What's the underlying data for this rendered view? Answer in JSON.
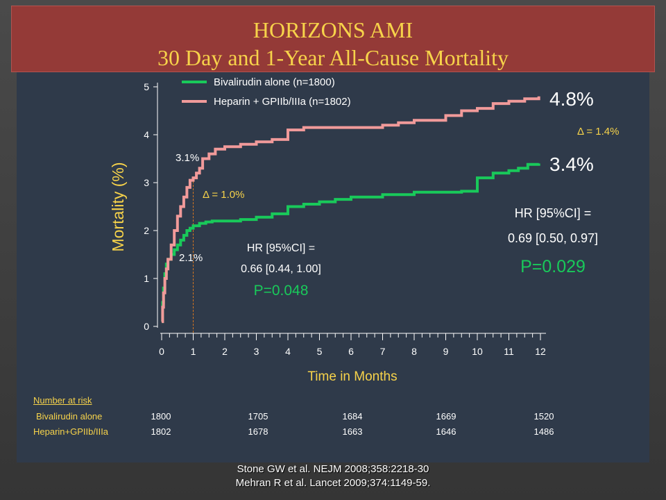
{
  "title": {
    "line1": "HORIZONS AMI",
    "line2": "30 Day and 1-Year All-Cause Mortality"
  },
  "colors": {
    "banner": "#943a37",
    "title_text": "#f7d34a",
    "bivalirudin": "#19c95a",
    "heparin": "#f19a9a",
    "panel": "#2f3a4a"
  },
  "chart_data": {
    "type": "line",
    "xlabel": "Time in Months",
    "ylabel": "Mortality (%)",
    "xlim": [
      0,
      12
    ],
    "ylim": [
      0,
      5
    ],
    "x_ticks": [
      "0",
      "1",
      "2",
      "3",
      "4",
      "5",
      "6",
      "7",
      "8",
      "9",
      "10",
      "11",
      "12"
    ],
    "y_ticks": [
      "0",
      "1",
      "2",
      "3",
      "4",
      "5"
    ],
    "grid": false,
    "legend_position": "top-left",
    "series": [
      {
        "name": "Bivalirudin alone (n=1800)",
        "x": [
          0,
          0.03,
          0.06,
          0.1,
          0.15,
          0.2,
          0.3,
          0.4,
          0.5,
          0.6,
          0.7,
          0.8,
          0.9,
          1.0,
          1.2,
          1.4,
          1.6,
          1.8,
          2.0,
          2.5,
          3.0,
          3.5,
          4.0,
          4.5,
          5.0,
          5.5,
          6.0,
          7.0,
          8.0,
          9.0,
          9.5,
          10.0,
          10.5,
          11.0,
          11.3,
          11.6,
          11.95
        ],
        "y": [
          0.1,
          0.5,
          0.8,
          1.1,
          1.3,
          1.4,
          1.5,
          1.6,
          1.7,
          1.8,
          1.9,
          2.0,
          2.05,
          2.1,
          2.15,
          2.18,
          2.2,
          2.2,
          2.2,
          2.23,
          2.28,
          2.35,
          2.5,
          2.55,
          2.6,
          2.65,
          2.7,
          2.75,
          2.8,
          2.8,
          2.82,
          3.1,
          3.2,
          3.25,
          3.3,
          3.38,
          3.4
        ]
      },
      {
        "name": "Heparin + GPIIb/IIIa (n=1802)",
        "x": [
          0,
          0.03,
          0.06,
          0.1,
          0.15,
          0.2,
          0.3,
          0.4,
          0.5,
          0.6,
          0.7,
          0.8,
          0.9,
          1.0,
          1.1,
          1.2,
          1.3,
          1.5,
          1.7,
          2.0,
          2.5,
          3.0,
          3.5,
          4.0,
          4.5,
          5.0,
          6.0,
          7.0,
          7.5,
          8.0,
          9.0,
          9.5,
          10.0,
          10.5,
          11.0,
          11.5,
          11.95
        ],
        "y": [
          0.1,
          0.4,
          0.7,
          1.0,
          1.2,
          1.4,
          1.7,
          2.0,
          2.3,
          2.5,
          2.7,
          2.9,
          3.05,
          3.1,
          3.2,
          3.3,
          3.5,
          3.6,
          3.7,
          3.75,
          3.8,
          3.85,
          3.9,
          4.1,
          4.15,
          4.15,
          4.15,
          4.2,
          4.25,
          4.3,
          4.4,
          4.5,
          4.55,
          4.65,
          4.7,
          4.75,
          4.8
        ]
      }
    ],
    "annotations": {
      "pct_30d_bival": "2.1%",
      "pct_30d_heparin": "3.1%",
      "delta_30d": "Δ = 1.0%",
      "hr_30d_line1": "HR [95%CI] =",
      "hr_30d_line2": "0.66 [0.44, 1.00]",
      "p_30d": "P=0.048",
      "pct_1y_heparin": "4.8%",
      "pct_1y_bival": "3.4%",
      "delta_1y": "Δ = 1.4%",
      "hr_1y_line1": "HR [95%CI] =",
      "hr_1y_line2": "0.69 [0.50, 0.97]",
      "p_1y": "P=0.029"
    }
  },
  "risk_table": {
    "header": "Number  at risk",
    "rows": [
      {
        "label": "Bivalirudin  alone",
        "values": [
          "1800",
          "1705",
          "1684",
          "1669",
          "1520"
        ]
      },
      {
        "label": "Heparin+GPIIb/IIIa",
        "values": [
          "1802",
          "1678",
          "1663",
          "1646",
          "1486"
        ]
      }
    ]
  },
  "references": {
    "line1": "Stone GW et al. NEJM 2008;358:2218-30",
    "line2": "Mehran R et al. Lancet 2009;374:1149-59."
  }
}
